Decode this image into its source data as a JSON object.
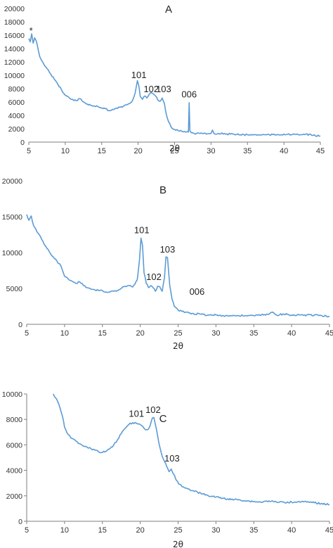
{
  "figure": {
    "line_color": "#5b9bd5",
    "axis_color": "#7f7f7f"
  },
  "chart_data": [
    {
      "type": "line",
      "title": "A",
      "xlabel": "2θ",
      "ylabel": "",
      "xlim": [
        5,
        45
      ],
      "ylim": [
        0,
        20000
      ],
      "xticks": [
        5,
        10,
        15,
        20,
        25,
        30,
        35,
        40,
        45
      ],
      "yticks": [
        0,
        2000,
        4000,
        6000,
        8000,
        10000,
        12000,
        14000,
        16000,
        18000,
        20000
      ],
      "grid": false,
      "annotations": [
        {
          "text": "*",
          "x": 5.3,
          "y": 16200
        },
        {
          "text": "101",
          "x": 20.1,
          "y": 9600
        },
        {
          "text": "102",
          "x": 21.8,
          "y": 7500
        },
        {
          "text": "103",
          "x": 23.5,
          "y": 7500
        },
        {
          "text": "006",
          "x": 27.0,
          "y": 6700
        }
      ],
      "series": [
        {
          "x": [
            5,
            5.2,
            5.4,
            5.6,
            5.8,
            6,
            6.5,
            7,
            7.5,
            8,
            8.5,
            9,
            9.5,
            10,
            10.5,
            11,
            11.5,
            12,
            12.5,
            13,
            13.5,
            14,
            14.5,
            15,
            15.5,
            16,
            16.5,
            17,
            17.5,
            18,
            18.5,
            19,
            19.3,
            19.6,
            19.9,
            20.1,
            20.3,
            20.6,
            20.9,
            21.2,
            21.5,
            21.8,
            22.1,
            22.4,
            22.7,
            23,
            23.3,
            23.6,
            23.9,
            24.2,
            24.5,
            25,
            25.5,
            26,
            26.5,
            26.9,
            27.0,
            27.1,
            27.3,
            27.7,
            28,
            29,
            30,
            30.2,
            30.4,
            31,
            32,
            33,
            34,
            35,
            36,
            37,
            38,
            39,
            40,
            41,
            42,
            43,
            44,
            45
          ],
          "values": [
            15500,
            15000,
            16200,
            14800,
            15600,
            15200,
            12800,
            11800,
            11000,
            10200,
            9400,
            8600,
            7800,
            7000,
            6700,
            6400,
            6200,
            6500,
            6000,
            5700,
            5500,
            5400,
            5300,
            5100,
            5000,
            4700,
            4900,
            5100,
            5200,
            5400,
            5600,
            5900,
            6400,
            7400,
            9200,
            8400,
            6800,
            6400,
            6900,
            6600,
            7100,
            7400,
            7200,
            6900,
            6300,
            6100,
            6600,
            5800,
            4000,
            3000,
            2300,
            1900,
            1700,
            1600,
            1500,
            1500,
            5900,
            1700,
            1400,
            1300,
            1300,
            1300,
            1300,
            1800,
            1300,
            1300,
            1200,
            1200,
            1100,
            1100,
            1100,
            1100,
            1100,
            1100,
            1200,
            1100,
            1100,
            1200,
            1000,
            900
          ]
        }
      ]
    },
    {
      "type": "line",
      "title": "B",
      "xlabel": "2θ",
      "ylabel": "",
      "xlim": [
        5,
        45
      ],
      "ylim": [
        0,
        20000
      ],
      "xticks": [
        5,
        10,
        15,
        20,
        25,
        30,
        35,
        40,
        45
      ],
      "yticks": [
        0,
        5000,
        10000,
        15000,
        20000
      ],
      "grid": false,
      "annotations": [
        {
          "text": "101",
          "x": 20.2,
          "y": 12700
        },
        {
          "text": "102",
          "x": 21.8,
          "y": 6200
        },
        {
          "text": "103",
          "x": 23.6,
          "y": 10000
        },
        {
          "text": "006",
          "x": 27.5,
          "y": 4100
        }
      ],
      "series": [
        {
          "x": [
            5,
            5.3,
            5.6,
            5.9,
            6.2,
            6.5,
            7,
            7.5,
            8,
            8.5,
            9,
            9.5,
            10,
            10.5,
            11,
            11.5,
            12,
            12.5,
            13,
            13.5,
            14,
            14.5,
            15,
            15.5,
            16,
            16.5,
            17,
            17.5,
            18,
            18.5,
            19,
            19.3,
            19.6,
            19.9,
            20.1,
            20.3,
            20.5,
            20.8,
            21.1,
            21.4,
            21.7,
            22,
            22.3,
            22.6,
            22.9,
            23.2,
            23.4,
            23.6,
            23.9,
            24.2,
            24.5,
            25,
            25.5,
            26,
            27,
            28,
            29,
            30,
            31,
            32,
            33,
            34,
            35,
            36,
            37,
            37.5,
            38,
            39,
            40,
            41,
            42,
            43,
            44,
            45
          ],
          "values": [
            15300,
            14500,
            15100,
            13800,
            13300,
            12700,
            11800,
            10900,
            10100,
            9400,
            8800,
            8200,
            6700,
            6300,
            6000,
            5700,
            5900,
            5400,
            5100,
            4900,
            4800,
            4700,
            4700,
            4500,
            4500,
            4600,
            4700,
            5000,
            5300,
            5400,
            5200,
            5600,
            6200,
            9000,
            12000,
            11000,
            7200,
            5700,
            5100,
            5400,
            5100,
            4600,
            5300,
            5200,
            4600,
            6500,
            9400,
            9300,
            5400,
            3500,
            2500,
            2000,
            1800,
            1700,
            1500,
            1400,
            1300,
            1300,
            1200,
            1200,
            1200,
            1200,
            1200,
            1300,
            1400,
            1700,
            1300,
            1400,
            1300,
            1300,
            1300,
            1300,
            1200,
            1100
          ]
        }
      ]
    },
    {
      "type": "line",
      "title": "C",
      "xlabel": "2θ",
      "ylabel": "",
      "xlim": [
        5,
        45
      ],
      "ylim": [
        0,
        10000
      ],
      "xticks": [
        5,
        10,
        15,
        20,
        25,
        30,
        35,
        40,
        45
      ],
      "yticks": [
        0,
        2000,
        4000,
        6000,
        8000,
        10000
      ],
      "grid": false,
      "annotations": [
        {
          "text": "101",
          "x": 19.5,
          "y": 8200
        },
        {
          "text": "102",
          "x": 21.7,
          "y": 8500
        },
        {
          "text": "103",
          "x": 24.2,
          "y": 4700
        }
      ],
      "series": [
        {
          "x": [
            8.5,
            8.8,
            9.1,
            9.4,
            9.7,
            10,
            10.5,
            11,
            11.5,
            12,
            12.5,
            13,
            13.5,
            14,
            14.5,
            15,
            15.5,
            16,
            16.5,
            17,
            17.5,
            18,
            18.5,
            19,
            19.5,
            20,
            20.5,
            21,
            21.3,
            21.6,
            21.8,
            22,
            22.3,
            22.6,
            22.9,
            23.2,
            23.5,
            23.8,
            24.1,
            24.4,
            24.8,
            25.2,
            26,
            27,
            28,
            29,
            30,
            31,
            32,
            33,
            34,
            35,
            36,
            37,
            38,
            39,
            40,
            41,
            42,
            43,
            44,
            45
          ],
          "values": [
            10000,
            9700,
            9400,
            8900,
            8300,
            7400,
            6800,
            6500,
            6300,
            6100,
            5900,
            5800,
            5700,
            5600,
            5450,
            5400,
            5500,
            5700,
            6000,
            6400,
            6900,
            7300,
            7600,
            7750,
            7700,
            7600,
            7300,
            7200,
            7500,
            8100,
            8150,
            7600,
            6700,
            5800,
            5100,
            4700,
            4300,
            3900,
            4100,
            3700,
            3200,
            2900,
            2600,
            2400,
            2200,
            2000,
            1900,
            1800,
            1700,
            1700,
            1600,
            1550,
            1500,
            1600,
            1500,
            1500,
            1500,
            1550,
            1500,
            1450,
            1400,
            1300
          ]
        }
      ]
    }
  ]
}
